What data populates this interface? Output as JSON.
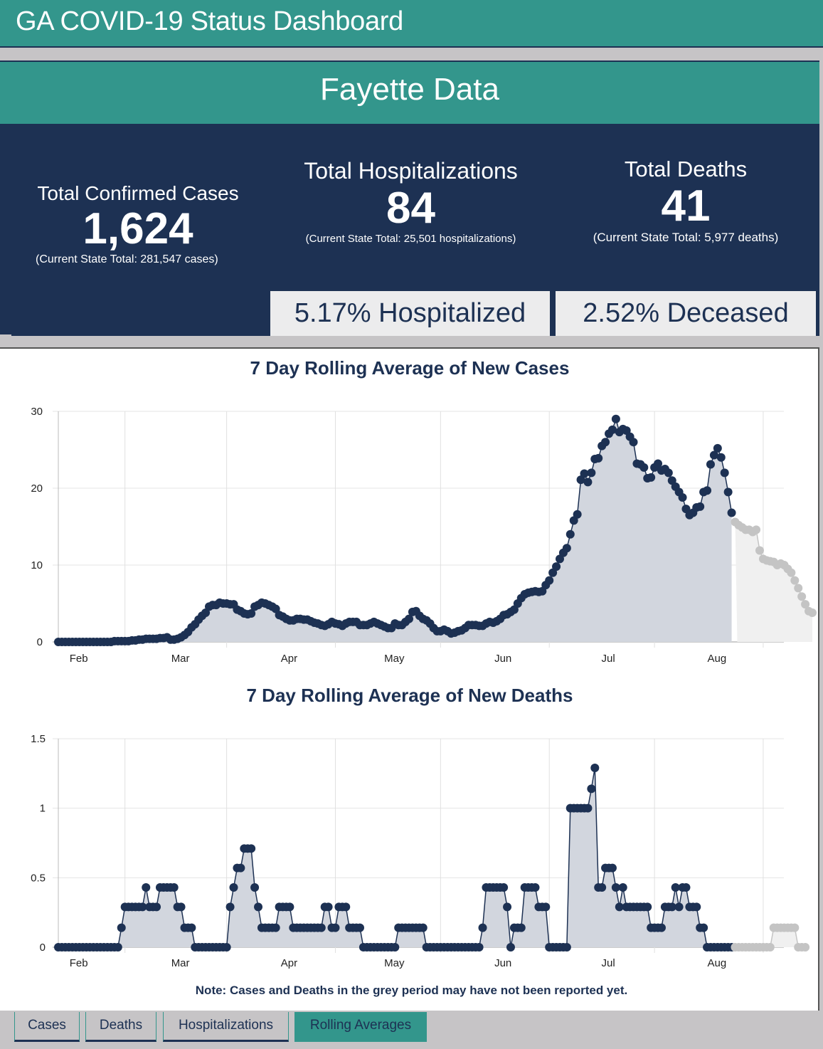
{
  "header": {
    "title": "GA COVID-19 Status Dashboard"
  },
  "county": {
    "title": "Fayette Data"
  },
  "stats": {
    "cases": {
      "label": "Total Confirmed Cases",
      "value": "1,624",
      "sub": "(Current State Total: 281,547 cases)"
    },
    "hospitalizations": {
      "label": "Total Hospitalizations",
      "value": "84",
      "sub": "(Current State Total: 25,501 hospitalizations)"
    },
    "deaths": {
      "label": "Total Deaths",
      "value": "41",
      "sub": "(Current State Total: 5,977 deaths)"
    },
    "pct_hospitalized": "5.17% Hospitalized",
    "pct_deceased": "2.52% Deceased"
  },
  "colors": {
    "teal": "#33968c",
    "navy": "#1d3153",
    "fill": "#d2d6de",
    "grey_point": "#c4c4c4",
    "grey_fill": "#f0f0f0"
  },
  "note": "Note: Cases and Deaths in the grey period may have not been reported yet.",
  "tabs": [
    {
      "label": "Cases",
      "active": false
    },
    {
      "label": "Deaths",
      "active": false
    },
    {
      "label": "Hospitalizations",
      "active": false
    },
    {
      "label": "Rolling Averages",
      "active": true
    }
  ],
  "chart_data": [
    {
      "type": "area",
      "title": "7 Day Rolling Average of New Cases",
      "xlabel": "",
      "ylabel": "",
      "ylim": [
        0,
        30
      ],
      "yticks": [
        "0",
        "10",
        "20",
        "30"
      ],
      "xtick_labels": [
        "Feb",
        "Mar",
        "Apr",
        "May",
        "Jun",
        "Jul",
        "Aug"
      ],
      "x_start": "Jan 27",
      "grid": true,
      "grey_period_start_index": 193,
      "values": [
        0,
        0,
        0,
        0,
        0,
        0,
        0,
        0,
        0,
        0,
        0,
        0,
        0,
        0,
        0,
        0,
        0.1,
        0.1,
        0.1,
        0.1,
        0.1,
        0.2,
        0.2,
        0.3,
        0.3,
        0.4,
        0.4,
        0.4,
        0.4,
        0.5,
        0.5,
        0.6,
        0.3,
        0.3,
        0.4,
        0.6,
        0.9,
        1.3,
        1.9,
        2.3,
        2.9,
        3.4,
        3.8,
        4.6,
        4.8,
        4.8,
        5.1,
        5.0,
        5.0,
        4.9,
        4.9,
        4.2,
        4.0,
        3.7,
        3.6,
        3.7,
        4.6,
        4.8,
        5.1,
        5.0,
        4.8,
        4.6,
        4.3,
        3.5,
        3.3,
        3.0,
        2.8,
        2.8,
        3.0,
        3.0,
        2.9,
        2.9,
        2.7,
        2.5,
        2.4,
        2.2,
        2.1,
        2.3,
        2.6,
        2.4,
        2.3,
        2.1,
        2.4,
        2.6,
        2.6,
        2.6,
        2.2,
        2.2,
        2.2,
        2.4,
        2.6,
        2.4,
        2.2,
        2.0,
        1.8,
        1.8,
        2.4,
        2.2,
        2.2,
        2.6,
        3.0,
        3.9,
        4.0,
        3.4,
        3.0,
        2.8,
        2.4,
        1.8,
        1.4,
        1.4,
        1.6,
        1.4,
        1.1,
        1.2,
        1.4,
        1.5,
        1.8,
        2.2,
        2.2,
        2.2,
        2.1,
        2.1,
        2.4,
        2.6,
        2.5,
        2.7,
        3.0,
        3.5,
        3.6,
        3.9,
        4.2,
        5.0,
        5.7,
        6.2,
        6.4,
        6.5,
        6.6,
        6.5,
        6.6,
        7.4,
        8.0,
        9.0,
        9.8,
        10.8,
        11.6,
        12.2,
        14.0,
        15.8,
        16.6,
        21.1,
        21.9,
        20.8,
        22.0,
        23.8,
        23.9,
        25.5,
        26.0,
        27.1,
        27.6,
        29.0,
        27.3,
        27.7,
        27.5,
        26.7,
        26.0,
        23.2,
        23.1,
        22.7,
        21.3,
        21.4,
        22.7,
        23.2,
        22.3,
        22.5,
        22.0,
        21.0,
        20.2,
        19.5,
        18.8,
        17.3,
        16.5,
        16.8,
        17.5,
        17.6,
        19.5,
        19.7,
        23.1,
        24.3,
        25.2,
        24.0,
        22.0,
        19.5,
        16.8,
        15.6,
        15.2,
        14.9,
        14.6,
        14.6,
        14.3,
        14.6,
        11.9,
        10.8,
        10.6,
        10.5,
        10.4,
        10.0,
        10.2,
        10.0,
        9.5,
        9.0,
        8.0,
        7.0,
        5.9,
        4.9,
        4.0,
        3.8
      ]
    },
    {
      "type": "area",
      "title": "7 Day Rolling Average of New Deaths",
      "xlabel": "",
      "ylabel": "",
      "ylim": [
        0,
        1.5
      ],
      "yticks": [
        "0",
        "0.5",
        "1",
        "1.5"
      ],
      "xtick_labels": [
        "Feb",
        "Mar",
        "Apr",
        "May",
        "Jun",
        "Jul",
        "Aug"
      ],
      "x_start": "Jan 27",
      "grid": true,
      "grey_period_start_index": 193,
      "values": [
        0,
        0,
        0,
        0,
        0,
        0,
        0,
        0,
        0,
        0,
        0,
        0,
        0,
        0,
        0,
        0,
        0,
        0,
        0.14,
        0.29,
        0.29,
        0.29,
        0.29,
        0.29,
        0.29,
        0.43,
        0.29,
        0.29,
        0.29,
        0.43,
        0.43,
        0.43,
        0.43,
        0.43,
        0.29,
        0.29,
        0.14,
        0.14,
        0.14,
        0,
        0,
        0,
        0,
        0,
        0,
        0,
        0,
        0,
        0,
        0.29,
        0.43,
        0.57,
        0.57,
        0.71,
        0.71,
        0.71,
        0.43,
        0.29,
        0.14,
        0.14,
        0.14,
        0.14,
        0.14,
        0.29,
        0.29,
        0.29,
        0.29,
        0.14,
        0.14,
        0.14,
        0.14,
        0.14,
        0.14,
        0.14,
        0.14,
        0.14,
        0.29,
        0.29,
        0.14,
        0.14,
        0.29,
        0.29,
        0.29,
        0.14,
        0.14,
        0.14,
        0.14,
        0,
        0,
        0,
        0,
        0,
        0,
        0,
        0,
        0,
        0,
        0.14,
        0.14,
        0.14,
        0.14,
        0.14,
        0.14,
        0.14,
        0.14,
        0,
        0,
        0,
        0,
        0,
        0,
        0,
        0,
        0,
        0,
        0,
        0,
        0,
        0,
        0,
        0,
        0.14,
        0.43,
        0.43,
        0.43,
        0.43,
        0.43,
        0.43,
        0.29,
        0,
        0.14,
        0.14,
        0.14,
        0.43,
        0.43,
        0.43,
        0.43,
        0.29,
        0.29,
        0.29,
        0,
        0,
        0,
        0,
        0,
        0,
        1,
        1,
        1,
        1,
        1,
        1,
        1.14,
        1.29,
        0.43,
        0.43,
        0.57,
        0.57,
        0.57,
        0.43,
        0.29,
        0.43,
        0.29,
        0.29,
        0.29,
        0.29,
        0.29,
        0.29,
        0.29,
        0.14,
        0.14,
        0.14,
        0.14,
        0.29,
        0.29,
        0.29,
        0.43,
        0.29,
        0.43,
        0.43,
        0.29,
        0.29,
        0.29,
        0.14,
        0.14,
        0,
        0,
        0,
        0,
        0,
        0,
        0,
        0,
        0,
        0,
        0,
        0,
        0,
        0,
        0,
        0,
        0,
        0,
        0,
        0.14,
        0.14,
        0.14,
        0.14,
        0.14,
        0.14,
        0.14,
        0,
        0,
        0
      ]
    }
  ]
}
